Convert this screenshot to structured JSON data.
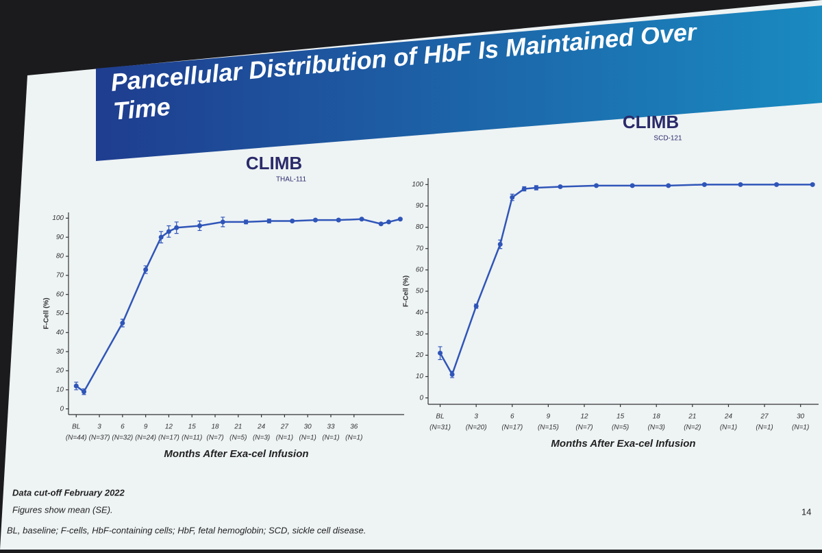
{
  "slide": {
    "title": "Pancellular Distribution of HbF Is Maintained Over Time",
    "notes": [
      "Data cut-off February 2022",
      "Figures show mean (SE)."
    ],
    "abbreviations": "BL, baseline; F-cells, HbF-containing cells; HbF, fetal hemoglobin; SCD, sickle cell disease.",
    "page": "14"
  },
  "chart_data": [
    {
      "type": "line",
      "logo": "CLIMB",
      "subtitle": "THAL-111",
      "y_label": "F-Cell (%)",
      "x_label": "Months After Exa-cel Infusion",
      "color": "#2f55b8",
      "x": [
        0,
        1,
        6,
        9,
        11,
        12,
        13,
        16,
        19,
        22,
        25,
        28,
        31,
        34,
        37,
        39.5,
        40.5,
        42
      ],
      "values": [
        12,
        9,
        45,
        73,
        90,
        93,
        95,
        96,
        98,
        98,
        98.5,
        98.5,
        99,
        99,
        99.5,
        97,
        98,
        99.5
      ],
      "errors": [
        2,
        1.5,
        2,
        2,
        3,
        3,
        3,
        2.5,
        2.5,
        1,
        1,
        0.5,
        0.5,
        0.5,
        0.5,
        0.5,
        0.5,
        0.5
      ],
      "xlim": [
        -1,
        42.5
      ],
      "ylim": [
        -3,
        103
      ],
      "yticks": [
        0,
        10,
        20,
        30,
        40,
        50,
        60,
        70,
        80,
        90,
        100
      ],
      "xticks": [
        {
          "value": 0,
          "label": "BL"
        },
        3,
        6,
        9,
        12,
        15,
        18,
        21,
        24,
        27,
        30,
        33,
        36
      ],
      "xtick_n": [
        "(N=44)",
        "(N=37)",
        "(N=32)",
        "(N=24)",
        "(N=17)",
        "(N=11)",
        "(N=7)",
        "(N=5)",
        "(N=3)",
        "(N=1)",
        "(N=1)",
        "(N=1)",
        "(N=1)"
      ]
    },
    {
      "type": "line",
      "logo": "CLIMB",
      "subtitle": "SCD-121",
      "y_label": "F-Cell (%)",
      "x_label": "Months After Exa-cel Infusion",
      "color": "#2f55b8",
      "x": [
        0,
        1,
        3,
        5,
        6,
        7,
        8,
        10,
        13,
        16,
        19,
        22,
        25,
        28,
        31
      ],
      "values": [
        21,
        11,
        43,
        72,
        94,
        98,
        98.5,
        99,
        99.5,
        99.5,
        99.5,
        100,
        100,
        100,
        100
      ],
      "errors": [
        3,
        1.5,
        1,
        2,
        1.5,
        1,
        1,
        0.5,
        0.5,
        0.5,
        0.5,
        0.5,
        0.5,
        0.5,
        0.5
      ],
      "xlim": [
        -1,
        31.5
      ],
      "ylim": [
        -3,
        103
      ],
      "yticks": [
        0,
        10,
        20,
        30,
        40,
        50,
        60,
        70,
        80,
        90,
        100
      ],
      "xticks": [
        {
          "value": 0,
          "label": "BL"
        },
        3,
        6,
        9,
        12,
        15,
        18,
        21,
        24,
        27,
        30
      ],
      "xtick_n": [
        "(N=31)",
        "(N=20)",
        "(N=17)",
        "(N=15)",
        "(N=7)",
        "(N=5)",
        "(N=3)",
        "(N=2)",
        "(N=1)",
        "(N=1)",
        "(N=1)"
      ]
    }
  ]
}
